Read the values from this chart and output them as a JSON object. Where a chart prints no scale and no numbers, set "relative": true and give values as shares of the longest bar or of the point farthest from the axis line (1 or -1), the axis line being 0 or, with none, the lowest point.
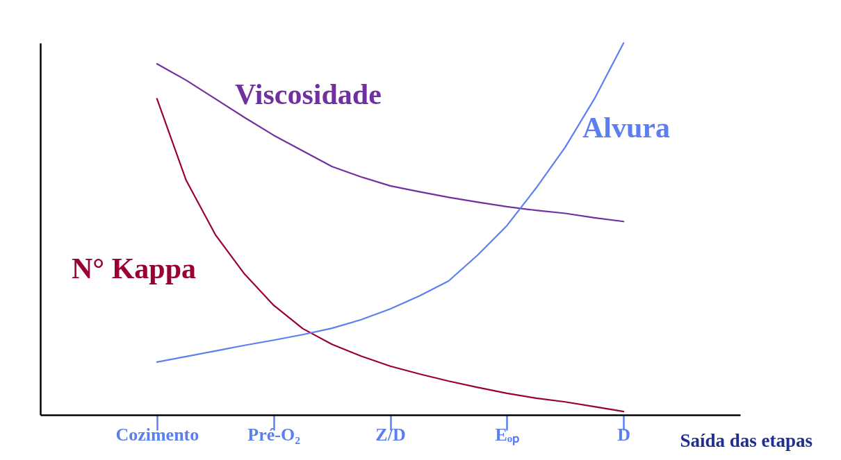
{
  "chart_data": {
    "type": "line",
    "relative": true,
    "xlabel": "Saída das etapas",
    "categories": [
      null,
      null,
      null,
      null,
      "Cozimento",
      null,
      null,
      null,
      "Pré-O₂",
      null,
      null,
      null,
      "Z/D",
      null,
      null,
      null,
      "Eₒₚ",
      null,
      null,
      null,
      "D",
      null,
      null,
      null,
      null
    ],
    "grid": false,
    "marker": "none",
    "line_style": "solid",
    "series": [
      {
        "name": "N° Kappa",
        "color": "#990033",
        "values": [
          null,
          null,
          null,
          null,
          0.85,
          0.631,
          0.485,
          0.379,
          0.295,
          0.232,
          0.19,
          0.158,
          0.131,
          0.11,
          0.091,
          0.074,
          0.058,
          0.045,
          0.035,
          0.022,
          0.009,
          null,
          null,
          null,
          null
        ]
      },
      {
        "name": "Viscosidade",
        "color": "#7030a0",
        "values": [
          null,
          null,
          null,
          null,
          0.944,
          0.9,
          0.85,
          0.8,
          0.752,
          0.71,
          0.668,
          0.64,
          0.616,
          0.6,
          0.585,
          0.572,
          0.56,
          0.55,
          0.542,
          0.53,
          0.52,
          null,
          null,
          null,
          null
        ]
      },
      {
        "name": "Alvura",
        "color": "#5b7ff0",
        "values": [
          null,
          null,
          null,
          null,
          0.142,
          0.157,
          0.172,
          0.187,
          0.201,
          0.216,
          0.233,
          0.256,
          0.285,
          0.32,
          0.36,
          0.43,
          0.509,
          0.61,
          0.72,
          0.85,
          1,
          null,
          null,
          null,
          null
        ]
      }
    ]
  }
}
